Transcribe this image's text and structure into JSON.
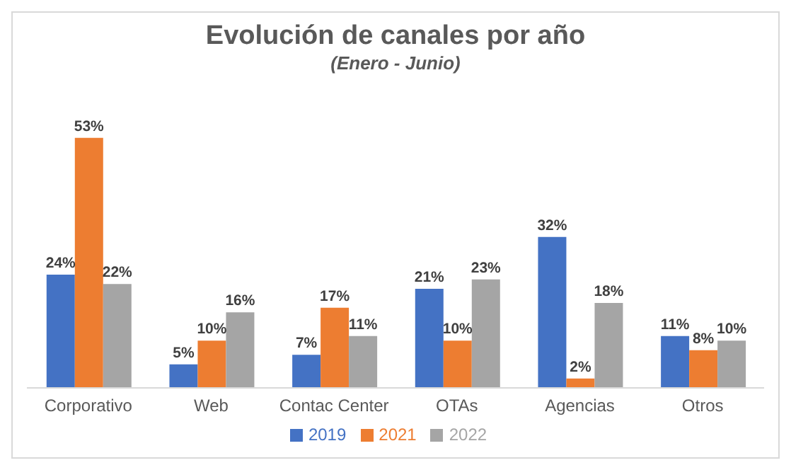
{
  "chart_data": {
    "type": "bar",
    "title": "Evolución de canales por año",
    "subtitle": "(Enero - Junio)",
    "categories": [
      "Corporativo",
      "Web",
      "Contac Center",
      "OTAs",
      "Agencias",
      "Otros"
    ],
    "series": [
      {
        "name": "2019",
        "color": "#4472c4",
        "values": [
          24,
          5,
          7,
          21,
          32,
          11
        ],
        "value_labels": [
          "24%",
          "5%",
          "7%",
          "21%",
          "32%",
          "11%"
        ]
      },
      {
        "name": "2021",
        "color": "#ed7d31",
        "values": [
          53,
          10,
          17,
          10,
          2,
          8
        ],
        "value_labels": [
          "53%",
          "10%",
          "17%",
          "10%",
          "2%",
          "8%"
        ]
      },
      {
        "name": "2022",
        "color": "#a5a5a5",
        "values": [
          22,
          16,
          11,
          23,
          18,
          10
        ],
        "value_labels": [
          "22%",
          "16%",
          "11%",
          "23%",
          "18%",
          "10%"
        ]
      }
    ],
    "legend": "bottom",
    "grid": false
  }
}
